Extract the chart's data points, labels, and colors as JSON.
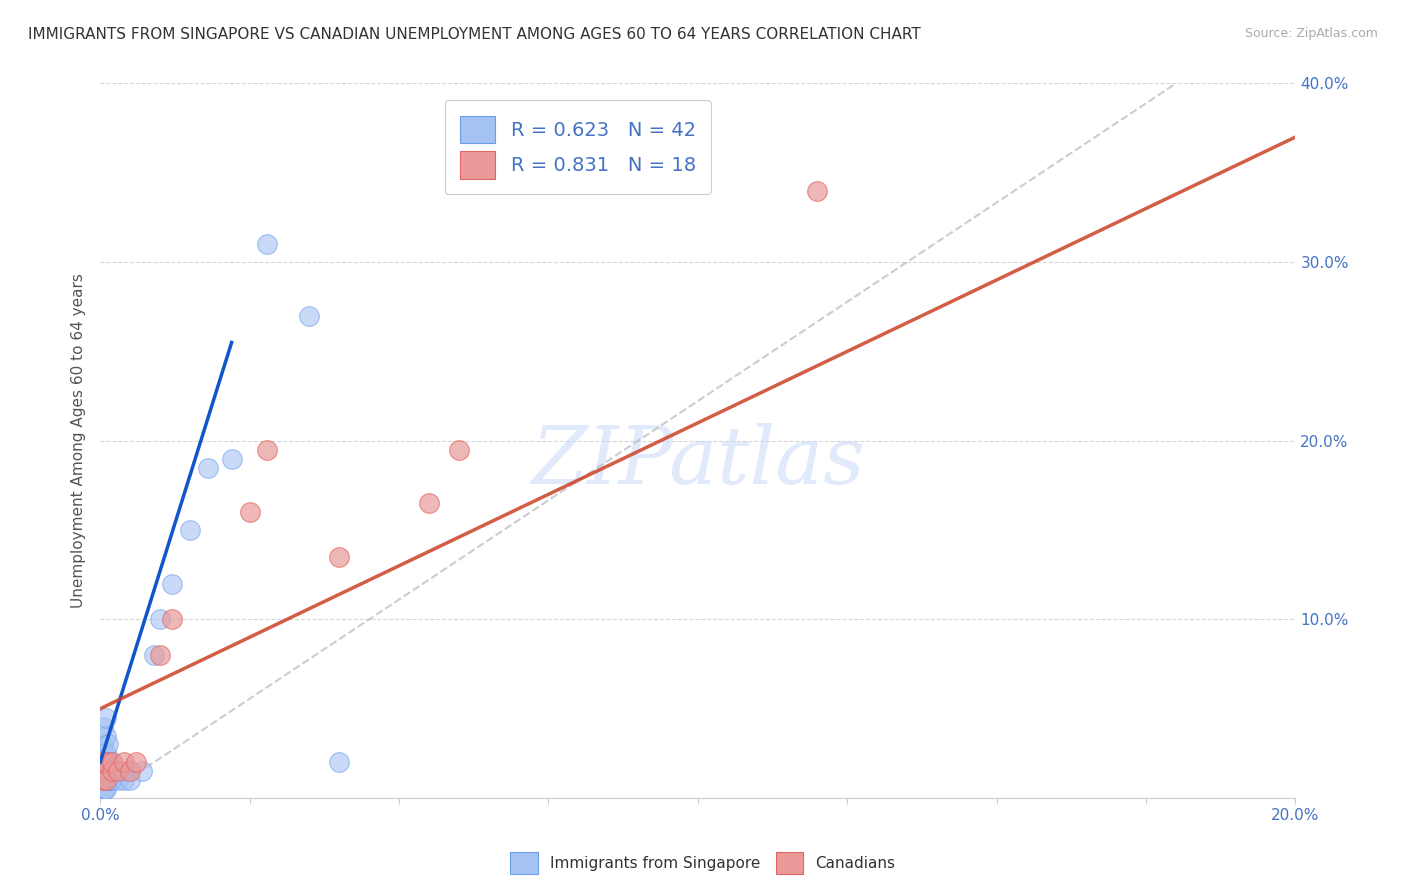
{
  "title": "IMMIGRANTS FROM SINGAPORE VS CANADIAN UNEMPLOYMENT AMONG AGES 60 TO 64 YEARS CORRELATION CHART",
  "source": "Source: ZipAtlas.com",
  "ylabel": "Unemployment Among Ages 60 to 64 years",
  "xlim": [
    0.0,
    0.2
  ],
  "ylim": [
    0.0,
    0.4
  ],
  "xticks": [
    0.0,
    0.025,
    0.05,
    0.075,
    0.1,
    0.125,
    0.15,
    0.175,
    0.2
  ],
  "yticks": [
    0.0,
    0.1,
    0.2,
    0.3,
    0.4
  ],
  "blue_scatter_x": [
    0.0005,
    0.0005,
    0.0005,
    0.0005,
    0.0005,
    0.0005,
    0.0005,
    0.0008,
    0.0008,
    0.0008,
    0.001,
    0.001,
    0.001,
    0.001,
    0.001,
    0.001,
    0.001,
    0.0013,
    0.0013,
    0.0013,
    0.0013,
    0.0015,
    0.0015,
    0.0015,
    0.002,
    0.002,
    0.002,
    0.003,
    0.003,
    0.004,
    0.004,
    0.005,
    0.007,
    0.009,
    0.01,
    0.012,
    0.015,
    0.018,
    0.022,
    0.028,
    0.035,
    0.04
  ],
  "blue_scatter_y": [
    0.005,
    0.01,
    0.015,
    0.02,
    0.025,
    0.03,
    0.04,
    0.005,
    0.01,
    0.015,
    0.005,
    0.01,
    0.015,
    0.02,
    0.025,
    0.035,
    0.045,
    0.01,
    0.015,
    0.02,
    0.03,
    0.01,
    0.015,
    0.02,
    0.01,
    0.015,
    0.02,
    0.01,
    0.015,
    0.01,
    0.015,
    0.01,
    0.015,
    0.08,
    0.1,
    0.12,
    0.15,
    0.185,
    0.19,
    0.31,
    0.27,
    0.02
  ],
  "pink_scatter_x": [
    0.0005,
    0.0005,
    0.001,
    0.001,
    0.002,
    0.002,
    0.003,
    0.004,
    0.005,
    0.006,
    0.01,
    0.012,
    0.025,
    0.028,
    0.04,
    0.055,
    0.06,
    0.12
  ],
  "pink_scatter_y": [
    0.01,
    0.02,
    0.01,
    0.02,
    0.015,
    0.02,
    0.015,
    0.02,
    0.015,
    0.02,
    0.08,
    0.1,
    0.16,
    0.195,
    0.135,
    0.165,
    0.195,
    0.34
  ],
  "blue_line_x": [
    0.0,
    0.022
  ],
  "blue_line_y": [
    0.02,
    0.255
  ],
  "pink_line_x": [
    0.0,
    0.2
  ],
  "pink_line_y": [
    0.05,
    0.37
  ],
  "diag_line_x": [
    0.0,
    0.18
  ],
  "diag_line_y": [
    0.0,
    0.4
  ],
  "blue_color": "#a4c2f4",
  "blue_edge_color": "#6d9eeb",
  "pink_color": "#ea9999",
  "pink_edge_color": "#e06666",
  "blue_line_color": "#1155cc",
  "pink_line_color": "#cc4125",
  "diag_color": "#b7b7b7",
  "legend_r1": "R = 0.623",
  "legend_n1": "N = 42",
  "legend_r2": "R = 0.831",
  "legend_n2": "N = 18",
  "watermark": "ZIPatlas",
  "legend_label1": "Immigrants from Singapore",
  "legend_label2": "Canadians",
  "title_fontsize": 11,
  "axis_label_fontsize": 11,
  "tick_fontsize": 11,
  "legend_fontsize": 14,
  "source_fontsize": 9,
  "background_color": "#ffffff",
  "grid_color": "#cccccc",
  "tick_color": "#4472c4",
  "ylabel_color": "#555555"
}
